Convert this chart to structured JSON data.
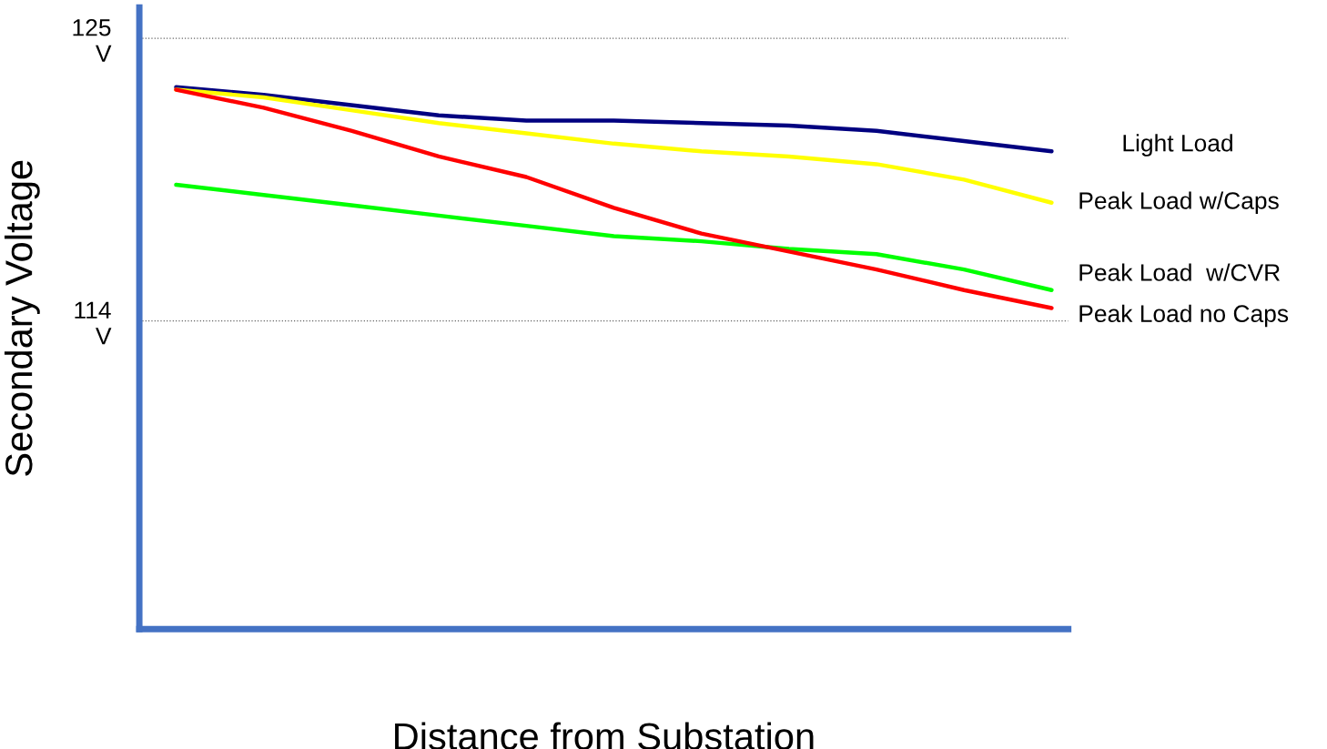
{
  "chart_data": {
    "type": "line",
    "xlabel": "Distance from Substation",
    "ylabel": "Secondary Voltage",
    "categories": [
      null,
      null,
      null,
      null,
      null,
      null,
      null,
      null,
      null,
      null,
      null
    ],
    "series": [
      {
        "name": "Light Load",
        "color": "#000080",
        "values": [
          123.1,
          122.8,
          122.4,
          122.0,
          121.8,
          121.8,
          121.7,
          121.6,
          121.4,
          121.0,
          120.6
        ]
      },
      {
        "name": "Peak Load w/Caps",
        "color": "#ffff00",
        "values": [
          123.0,
          122.7,
          122.2,
          121.7,
          121.3,
          120.9,
          120.6,
          120.4,
          120.1,
          119.5,
          118.6
        ]
      },
      {
        "name": "Peak Load  w/CVR",
        "color": "#00ff00",
        "values": [
          119.3,
          118.9,
          118.5,
          118.1,
          117.7,
          117.3,
          117.1,
          116.8,
          116.6,
          116.0,
          115.2
        ]
      },
      {
        "name": "Peak Load no Caps",
        "color": "#ff0000",
        "values": [
          123.0,
          122.3,
          121.4,
          120.4,
          119.6,
          118.4,
          117.4,
          116.7,
          116.0,
          115.2,
          114.5
        ]
      }
    ],
    "ylim": [
      102,
      126.2
    ],
    "yticks": [
      {
        "value": 125,
        "label": "125\nV"
      },
      {
        "value": 114,
        "label": "114\nV"
      }
    ],
    "grid": "y",
    "legend": false,
    "marker": "none",
    "line_style": "solid"
  }
}
